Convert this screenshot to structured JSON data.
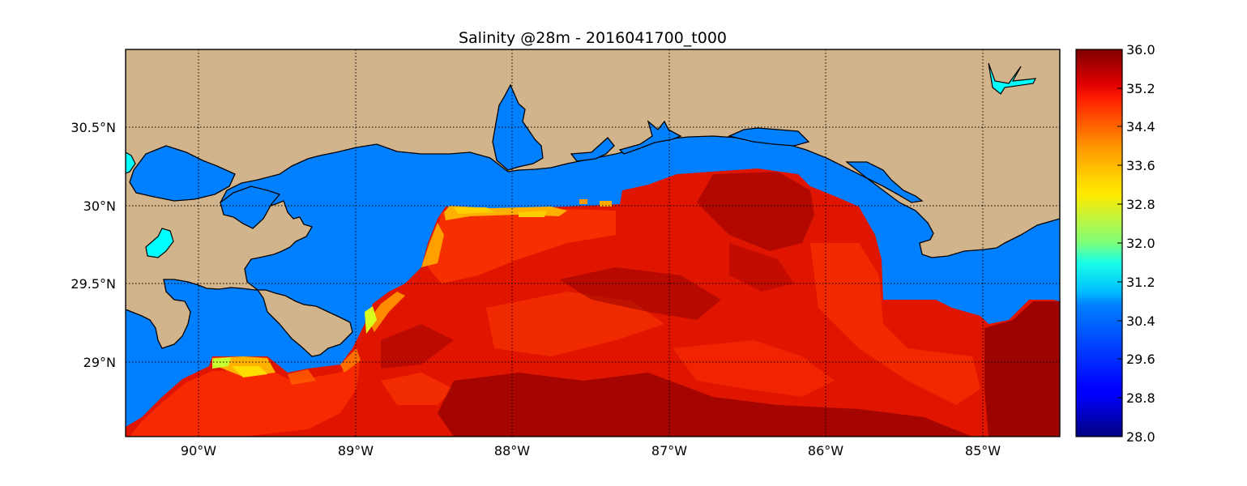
{
  "title": "Salinity @28m - 2016041700_t000",
  "map": {
    "lon_range": [
      -90.5,
      -84.5
    ],
    "lat_range": [
      28.5,
      31.0
    ],
    "longitude_labels": [
      "90°W",
      "89°W",
      "88°W",
      "87°W",
      "86°W",
      "85°W"
    ],
    "latitude_labels": [
      "30.5°N",
      "30°N",
      "29.5°N",
      "29°N"
    ],
    "gridlines": "dotted",
    "colors": {
      "land": "#d2b48c",
      "masked_water": "#0080ff",
      "frame": "#000000"
    }
  },
  "colorbar": {
    "colormap": "jet",
    "range": [
      28.0,
      36.0
    ],
    "tick_labels": [
      "36.0",
      "35.2",
      "34.4",
      "33.6",
      "32.8",
      "32.0",
      "31.2",
      "30.4",
      "29.6",
      "28.8",
      "28.0"
    ],
    "placement": "right"
  }
}
